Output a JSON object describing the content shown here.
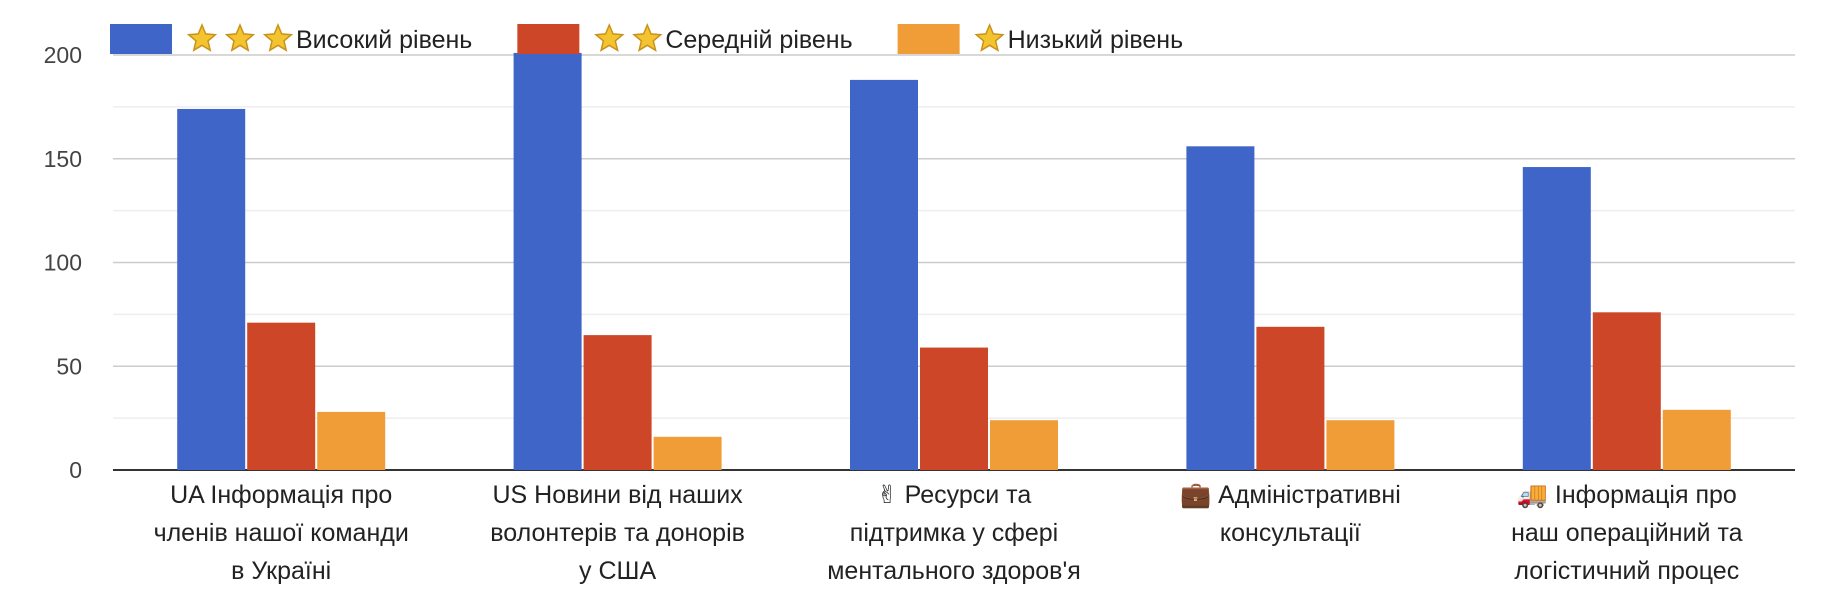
{
  "chart_data": {
    "type": "bar",
    "categories": [
      "🇺🇦 Інформація про членів нашої команди в Україні",
      "🇺🇸 Новини від наших волонтерів та донорів у США",
      "✌️ Ресурси та підтримка у сфері ментального здоров'я",
      "💼 Адміністративні консультації",
      "🚚 Інформація про наш операційний та логістичний процес"
    ],
    "category_lines": [
      [
        "UA Інформація про",
        "членів нашої команди",
        "в Україні"
      ],
      [
        "US Новини від наших",
        "волонтерів та донорів",
        "у США"
      ],
      [
        "✌ Ресурси та",
        "підтримка у сфері",
        "ментального здоров'я"
      ],
      [
        "💼 Адміністративні",
        "консультації"
      ],
      [
        "🚚 Інформація про",
        "наш операційний та",
        "логістичний процес"
      ]
    ],
    "series": [
      {
        "name": "⭐⭐⭐Високий рівень",
        "label": "Високий рівень",
        "stars": 3,
        "color": "#3f65c8",
        "values": [
          174,
          201,
          188,
          156,
          146
        ]
      },
      {
        "name": "⭐⭐Середній рівень",
        "label": "Середній рівень",
        "stars": 2,
        "color": "#cc4627",
        "values": [
          71,
          65,
          59,
          69,
          76
        ]
      },
      {
        "name": "⭐Низький рівень",
        "label": "Низький рівень",
        "stars": 1,
        "color": "#f09d38",
        "values": [
          28,
          16,
          24,
          24,
          29
        ]
      }
    ],
    "y_ticks": [
      0,
      50,
      100,
      150,
      200
    ],
    "ylim": [
      0,
      200
    ],
    "grid": true,
    "legend_position": "top"
  }
}
